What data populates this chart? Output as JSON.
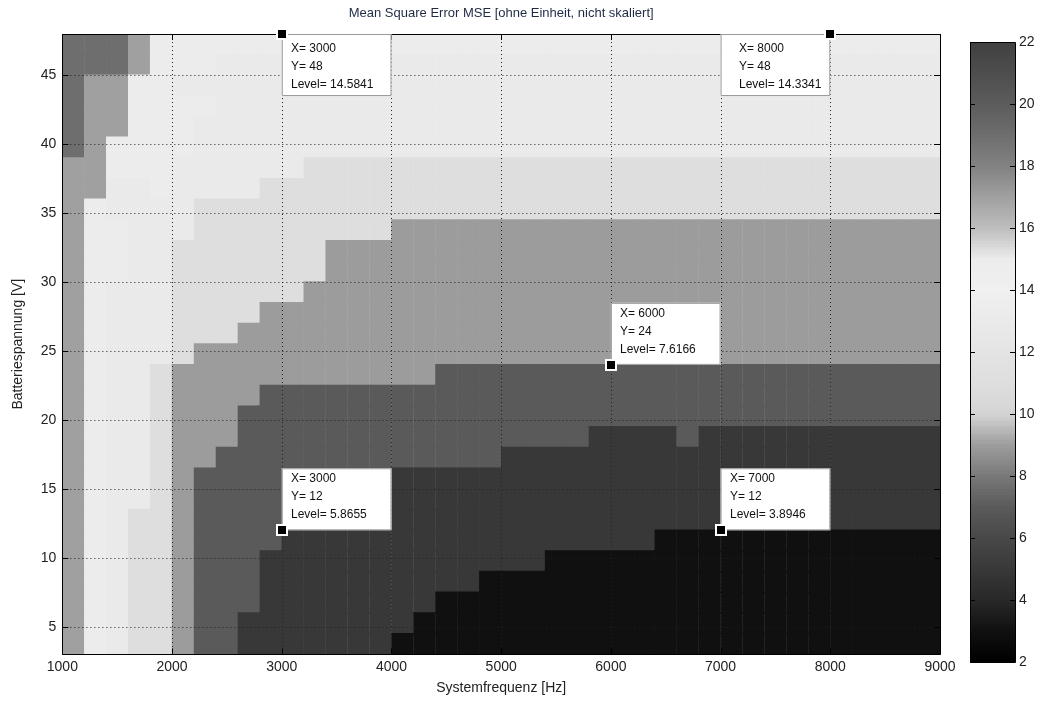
{
  "chart_data": {
    "type": "scatter",
    "title": "Mean Square Error MSE [ohne Einheit, nicht skaliert]",
    "xlabel": "Systemfrequenz [Hz]",
    "ylabel": "Batteriespannung [V]",
    "marker": "square",
    "x": [
      1100,
      1300,
      1500,
      1700,
      1900,
      2100,
      2300,
      2500,
      2700,
      2900,
      4100,
      4300,
      4500,
      4700,
      4900,
      5100,
      5300,
      5500,
      5700,
      5900,
      6100,
      6300,
      6500,
      6700,
      6900,
      8100,
      8300,
      8500,
      8700,
      8900,
      1100,
      1300,
      1500,
      1700,
      1900,
      2100,
      2300,
      2500,
      2700,
      2900,
      4100,
      4300,
      4500,
      4700,
      4900,
      5100,
      5300,
      5500,
      5700,
      5900,
      6100,
      6300,
      6500,
      6700,
      6900,
      8100,
      8300,
      8500,
      8700,
      8900,
      1100,
      1300,
      1500,
      1700,
      1900,
      2100,
      2300,
      2500,
      2700,
      2900,
      4100,
      4300,
      4500,
      4700,
      4900,
      5100,
      5300,
      5500,
      5700,
      5900,
      6100,
      6300,
      6500,
      6700,
      6900,
      8100,
      8300,
      8500,
      8700,
      8900,
      1100,
      1300,
      1500,
      1700,
      1900,
      2100,
      2300,
      2500,
      2700,
      2900,
      3100,
      3300,
      3500,
      3700,
      3900,
      4100,
      4300,
      4500,
      4700,
      4900,
      5100,
      5300,
      5500,
      5700,
      5900,
      6100,
      6300,
      6500,
      6700,
      6900,
      7100,
      7300,
      7500,
      7700,
      7900,
      8100,
      8300,
      8500,
      8700,
      8900,
      1100,
      1300,
      1500,
      1700,
      1900,
      2100,
      2300,
      2500,
      2700,
      2900,
      3100,
      3300,
      3500,
      3700,
      3900,
      4100,
      4300,
      4500,
      4700,
      4900,
      5100,
      5300,
      5500,
      5700,
      5900,
      6100,
      6300,
      6500,
      6700,
      6900,
      7100,
      7300,
      7500,
      7700,
      7900,
      8100,
      8300,
      8500,
      8700,
      8900,
      1100,
      1300,
      1500,
      1700,
      1900,
      2100,
      2300,
      2500,
      2700,
      2900,
      3100,
      3300,
      3500,
      3700,
      3900,
      4100,
      4300,
      4500,
      4700,
      4900,
      5100,
      5300,
      5500,
      5700,
      5900,
      6100,
      6300,
      6500,
      6700,
      6900,
      7100,
      7300,
      7500,
      7700,
      7900,
      8100,
      8300,
      8500,
      8700,
      8900,
      1100,
      1300,
      1500,
      1700,
      1900,
      2100,
      2300,
      2500,
      2700,
      2900,
      3100,
      3300,
      3500,
      3700,
      3900,
      4100,
      4300,
      4500,
      4700,
      4900,
      5100,
      5300,
      5500,
      5700,
      5900,
      6100,
      6300,
      6500,
      6700,
      6900,
      7100,
      7300,
      7500,
      7700,
      7900,
      8100,
      8300,
      8500,
      8700,
      8900,
      1100,
      1300,
      1500,
      1700,
      1900,
      2100,
      2300,
      2500,
      2700,
      2900,
      3100,
      3300,
      3500,
      3700,
      3900,
      4100,
      4300,
      4500,
      4700,
      4900,
      5100,
      5300,
      5500,
      5700,
      5900,
      6100,
      6300,
      6500,
      6700,
      6900,
      7100,
      7300,
      7500,
      7700,
      7900,
      8100,
      8300,
      8500,
      8700,
      8900,
      1100,
      1300,
      1500,
      1700,
      1900,
      2100,
      2300,
      2500,
      2700,
      2900,
      3100,
      3300,
      3500,
      3700,
      3900,
      4100,
      4300,
      4500,
      4700,
      4900,
      5100,
      5300,
      5500,
      5700,
      5900,
      6100,
      6300,
      6500,
      6700,
      6900,
      7100,
      7300,
      7500,
      7700,
      7900,
      8100,
      8300,
      8500,
      8700,
      8900,
      1100,
      1300,
      1500,
      1700,
      1900,
      2100,
      2300,
      2500,
      2700,
      2900,
      3100,
      3300,
      3500,
      3700,
      3900,
      4100,
      4300,
      4500,
      4700,
      4900,
      5100,
      5300,
      5500,
      5700,
      5900,
      6100,
      6300,
      6500,
      6700,
      6900,
      7100,
      7300,
      7500,
      7700,
      7900,
      8100,
      8300,
      8500,
      8700,
      8900,
      1100,
      1300,
      1500,
      1700,
      1900,
      2100,
      2300,
      2500,
      2700,
      2900,
      3100,
      3300,
      3500,
      3700,
      3900,
      4100,
      4300,
      4500,
      4700,
      4900,
      5100,
      5300,
      5500,
      5700,
      5900,
      6100,
      6300,
      6500,
      6700,
      6900,
      7100,
      7300,
      7500,
      7700,
      7900,
      8100,
      8300,
      8500,
      8700,
      8900,
      1100,
      1300,
      1500,
      1700,
      1900,
      2100,
      2300,
      2500,
      2700,
      2900,
      3100,
      3300,
      3500,
      3700,
      3900,
      4100,
      4300,
      4500,
      4700,
      4900,
      5100,
      5300,
      5500,
      5700,
      5900,
      6100,
      6300,
      6500,
      6700,
      6900,
      7100,
      7300,
      7500,
      7700,
      7900,
      8100,
      8300,
      8500,
      8700,
      8900,
      1100,
      1300,
      1500,
      1700,
      1900,
      2100,
      2300,
      2500,
      2700,
      2900,
      3100,
      3300,
      3500,
      3700,
      3900,
      4100,
      4300,
      4500,
      4700,
      4900,
      5100,
      5300,
      5500,
      5700,
      5900,
      6100,
      6300,
      6500,
      6700,
      6900,
      7100,
      7300,
      7500,
      7700,
      7900,
      8100,
      8300,
      8500,
      8700,
      8900,
      1100,
      1300,
      1500,
      1700,
      1900,
      2100,
      2300,
      2500,
      2700,
      2900,
      3100,
      3300,
      3500,
      3700,
      3900,
      4100,
      4300,
      4500,
      4700,
      4900,
      5100,
      5300,
      5500,
      5700,
      5900,
      7100,
      7300,
      7500,
      7700,
      7900,
      8100,
      8300,
      8500,
      8700,
      8900,
      1100,
      1300,
      1500,
      1700,
      1900,
      2100,
      2300,
      2500,
      2700,
      2900,
      3100,
      3300,
      3500,
      3700,
      3900,
      4100,
      4300,
      4500,
      4700,
      4900,
      5100,
      5300,
      5500,
      5700,
      5900,
      7100,
      7300,
      7500,
      7700,
      7900,
      8100,
      8300,
      8500,
      8700,
      8900,
      1100,
      1300,
      1500,
      1700,
      1900,
      2100,
      2300,
      2500,
      2700,
      2900,
      3100,
      3300,
      3500,
      3700,
      3900,
      4100,
      4300,
      4500,
      4700,
      4900,
      5100,
      5300,
      5500,
      5700,
      5900,
      7100,
      7300,
      7500,
      7700,
      7900,
      8100,
      8300,
      8500,
      8700,
      8900,
      1100,
      1300,
      1500,
      1700,
      1900,
      2100,
      2300,
      2500,
      2700,
      2900,
      3100,
      3300,
      3500,
      3700,
      3900,
      4100,
      4300,
      4500,
      4700,
      4900,
      5100,
      5300,
      5500,
      5700,
      5900,
      6100,
      6300,
      6500,
      6700,
      6900,
      7100,
      7300,
      7500,
      7700,
      7900,
      8100,
      8300,
      8500,
      8700,
      8900,
      1100,
      1300,
      1500,
      1700,
      1900,
      2100,
      2300,
      2500,
      2700,
      2900,
      3100,
      3300,
      3500,
      3700,
      3900,
      4100,
      4300,
      4500,
      4700,
      4900,
      5100,
      5300,
      5500,
      5700,
      5900,
      6100,
      6300,
      6500,
      6700,
      6900,
      7100,
      7300,
      7500,
      7700,
      7900,
      8100,
      8300,
      8500,
      8700,
      8900,
      1100,
      1300,
      1500,
      1700,
      1900,
      2100,
      2300,
      2500,
      2700,
      2900,
      3100,
      3300,
      3500,
      3700,
      3900,
      4100,
      4300,
      4500,
      4700,
      4900,
      5100,
      5300,
      5500,
      5700,
      5900,
      6100,
      6300,
      6500,
      6700,
      6900,
      7100,
      7300,
      7500,
      7700,
      7900,
      8100,
      8300,
      8500,
      8700,
      8900,
      1100,
      1300,
      1500,
      1700,
      1900,
      2100,
      2300,
      2500,
      2700,
      2900,
      3100,
      3300,
      3500,
      3700,
      3900,
      4100,
      4300,
      4500,
      4700,
      4900,
      5100,
      5300,
      5500,
      5700,
      5900,
      6100,
      6300,
      6500,
      6700,
      6900,
      7100,
      7300,
      7500,
      7700,
      7900,
      8100,
      8300,
      8500,
      8700,
      8900,
      1100,
      1300,
      1500,
      1700,
      1900,
      2100,
      2300,
      2500,
      2700,
      2900,
      3100,
      3300,
      3500,
      3700,
      3900,
      4100,
      4300,
      4500,
      4700,
      4900,
      5100,
      5300,
      5500,
      5700,
      5900,
      6100,
      6300,
      6500,
      6700,
      6900,
      7100,
      7300,
      7500,
      7700,
      7900,
      8100,
      8300,
      8500,
      8700,
      8900,
      1100,
      1300,
      1500,
      1700,
      1900,
      2100,
      2300,
      2500,
      2700,
      2900,
      4100,
      4300,
      4500,
      4700,
      4900,
      5100,
      5300,
      5500,
      5700,
      5900,
      6100,
      6300,
      6500,
      6700,
      6900,
      8100,
      8300,
      8500,
      8700,
      8900,
      1100,
      1300,
      1500,
      1700,
      1900,
      2100,
      2300,
      2500,
      2700,
      2900,
      4100,
      4300,
      4500,
      4700,
      4900,
      5100,
      5300,
      5500,
      5700,
      5900,
      6100,
      6300,
      6500,
      6700,
      6900,
      8100,
      8300,
      8500,
      8700,
      8900,
      1100,
      1300,
      1500,
      1700,
      1900,
      2100,
      2300,
      2500,
      2700,
      2900,
      4100,
      4300,
      4500,
      4700,
      4900,
      5100,
      5300,
      5500,
      5700,
      5900,
      6100,
      6300,
      6500,
      6700,
      6900,
      8100,
      8300,
      8500,
      8700,
      8900,
      1100,
      1300,
      1500,
      1700,
      1900,
      2100,
      2300,
      2500,
      2700,
      2900,
      3100,
      3300,
      3500,
      3700,
      3900,
      4100,
      4300,
      4500,
      4700,
      4900,
      5100,
      5300,
      5500,
      5700,
      5900,
      6100,
      6300,
      6500,
      6700,
      6900,
      7100,
      7300,
      7500,
      7700,
      7900,
      8100,
      8300,
      8500,
      8700,
      8900,
      1100,
      1300,
      1500,
      1700,
      1900,
      2100,
      2300,
      2500,
      2700,
      2900,
      3100,
      3300,
      3500,
      3700,
      3900,
      4100,
      4300,
      4500,
      4700,
      4900,
      5100,
      5300,
      5500,
      5700,
      5900,
      6100,
      6300,
      6500,
      6700,
      6900,
      7100,
      7300,
      7500,
      7700,
      7900,
      8100,
      8300,
      8500,
      8700,
      8900,
      1100,
      1300,
      1500,
      1700,
      1900,
      2100,
      2300,
      2500,
      2700,
      2900,
      3100,
      3300,
      3500,
      3700,
      3900,
      4100,
      4300,
      4500,
      4700,
      4900,
      5100,
      5300,
      5500,
      5700,
      5900,
      6100,
      6300,
      6500,
      6700,
      6900,
      7100,
      7300,
      7500,
      7700,
      7900,
      8100,
      8300,
      8500,
      8700,
      8900,
      1100,
      1300,
      1500,
      1700,
      1900,
      2100,
      2300,
      2500,
      2700,
      2900,
      3100,
      3300,
      3500,
      3700,
      3900,
      4100,
      4300,
      4500,
      4700,
      4900,
      5100,
      5300,
      5500,
      5700,
      5900,
      6100,
      6300,
      6500,
      6700,
      6900,
      7100,
      7300,
      7500,
      7700,
      7900,
      8100,
      8300,
      8500,
      8700,
      8900,
      1100,
      1300,
      1500,
      1700,
      1900,
      2100,
      2300,
      2500,
      2700,
      2900,
      3100,
      3300,
      3500,
      3700,
      3900,
      4100,
      4300,
      4500,
      4700,
      4900,
      5100,
      5300,
      5500,
      5700,
      5900,
      6100,
      6300,
      6500,
      6700,
      6900,
      7100,
      7300,
      7500,
      7700,
      7900,
      8100,
      8300,
      8500,
      8700,
      8900,
      1100,
      1300,
      1500,
      1700,
      1900,
      2100,
      2300,
      2500,
      2700,
      2900,
      3100,
      3300,
      3500,
      3700,
      3900,
      4100,
      4300,
      4500,
      4700,
      4900,
      5100,
      5300,
      5500,
      5700,
      5900,
      6100,
      6300,
      6500,
      6700,
      6900,
      7100,
      7300,
      7500,
      7700,
      7900,
      8100,
      8300,
      8500,
      8700,
      8900
    ],
    "values": [
      47.25,
      47.25,
      47.25,
      47.25,
      47.25,
      47.25,
      47.25,
      47.25,
      47.25,
      47.25,
      47.25,
      47.25,
      47.25,
      47.25,
      47.25,
      47.25,
      47.25,
      47.25,
      47.25,
      47.25,
      47.25,
      47.25,
      47.25,
      47.25,
      47.25,
      47.25,
      47.25,
      47.25,
      47.25,
      47.25,
      45.75,
      45.75,
      45.75,
      45.75,
      45.75,
      45.75,
      45.75,
      45.75,
      45.75,
      45.75,
      45.75,
      45.75,
      45.75,
      45.75,
      45.75,
      45.75,
      45.75,
      45.75,
      45.75,
      45.75,
      45.75,
      45.75,
      45.75,
      45.75,
      45.75,
      45.75,
      45.75,
      45.75,
      45.75,
      45.75,
      44.25,
      44.25,
      44.25,
      44.25,
      44.25,
      44.25,
      44.25,
      44.25,
      44.25,
      44.25,
      44.25,
      44.25,
      44.25,
      44.25,
      44.25,
      44.25,
      44.25,
      44.25,
      44.25,
      44.25,
      44.25,
      44.25,
      44.25,
      44.25,
      44.25,
      44.25,
      44.25,
      44.25,
      44.25,
      44.25,
      42.75,
      42.75,
      42.75,
      42.75,
      42.75,
      42.75,
      42.75,
      42.75,
      42.75,
      42.75,
      42.75,
      42.75,
      42.75,
      42.75,
      42.75,
      42.75,
      42.75,
      42.75,
      42.75,
      42.75,
      42.75,
      42.75,
      42.75,
      42.75,
      42.75,
      42.75,
      42.75,
      42.75,
      42.75,
      42.75,
      42.75,
      42.75,
      42.75,
      42.75,
      42.75,
      42.75,
      42.75,
      42.75,
      42.75,
      42.75,
      41.25,
      41.25,
      41.25,
      41.25,
      41.25,
      41.25,
      41.25,
      41.25,
      41.25,
      41.25,
      41.25,
      41.25,
      41.25,
      41.25,
      41.25,
      41.25,
      41.25,
      41.25,
      41.25,
      41.25,
      41.25,
      41.25,
      41.25,
      41.25,
      41.25,
      41.25,
      41.25,
      41.25,
      41.25,
      41.25,
      41.25,
      41.25,
      41.25,
      41.25,
      41.25,
      41.25,
      41.25,
      41.25,
      41.25,
      41.25,
      39.75,
      39.75,
      39.75,
      39.75,
      39.75,
      39.75,
      39.75,
      39.75,
      39.75,
      39.75,
      39.75,
      39.75,
      39.75,
      39.75,
      39.75,
      39.75,
      39.75,
      39.75,
      39.75,
      39.75,
      39.75,
      39.75,
      39.75,
      39.75,
      39.75,
      39.75,
      39.75,
      39.75,
      39.75,
      39.75,
      39.75,
      39.75,
      39.75,
      39.75,
      39.75,
      39.75,
      39.75,
      39.75,
      39.75,
      39.75,
      38.25,
      38.25,
      38.25,
      38.25,
      38.25,
      38.25,
      38.25,
      38.25,
      38.25,
      38.25,
      38.25,
      38.25,
      38.25,
      38.25,
      38.25,
      38.25,
      38.25,
      38.25,
      38.25,
      38.25,
      38.25,
      38.25,
      38.25,
      38.25,
      38.25,
      38.25,
      38.25,
      38.25,
      38.25,
      38.25,
      38.25,
      38.25,
      38.25,
      38.25,
      38.25,
      38.25,
      38.25,
      38.25,
      38.25,
      38.25,
      36.75,
      36.75,
      36.75,
      36.75,
      36.75,
      36.75,
      36.75,
      36.75,
      36.75,
      36.75,
      36.75,
      36.75,
      36.75,
      36.75,
      36.75,
      36.75,
      36.75,
      36.75,
      36.75,
      36.75,
      36.75,
      36.75,
      36.75,
      36.75,
      36.75,
      36.75,
      36.75,
      36.75,
      36.75,
      36.75,
      36.75,
      36.75,
      36.75,
      36.75,
      36.75,
      36.75,
      36.75,
      36.75,
      36.75,
      36.75,
      35.25,
      35.25,
      35.25,
      35.25,
      35.25,
      35.25,
      35.25,
      35.25,
      35.25,
      35.25,
      35.25,
      35.25,
      35.25,
      35.25,
      35.25,
      35.25,
      35.25,
      35.25,
      35.25,
      35.25,
      35.25,
      35.25,
      35.25,
      35.25,
      35.25,
      35.25,
      35.25,
      35.25,
      35.25,
      35.25,
      35.25,
      35.25,
      35.25,
      35.25,
      35.25,
      35.25,
      35.25,
      35.25,
      35.25,
      35.25,
      33.75,
      33.75,
      33.75,
      33.75,
      33.75,
      33.75,
      33.75,
      33.75,
      33.75,
      33.75,
      33.75,
      33.75,
      33.75,
      33.75,
      33.75,
      33.75,
      33.75,
      33.75,
      33.75,
      33.75,
      33.75,
      33.75,
      33.75,
      33.75,
      33.75,
      33.75,
      33.75,
      33.75,
      33.75,
      33.75,
      33.75,
      33.75,
      33.75,
      33.75,
      33.75,
      33.75,
      33.75,
      33.75,
      33.75,
      33.75,
      32.25,
      32.25,
      32.25,
      32.25,
      32.25,
      32.25,
      32.25,
      32.25,
      32.25,
      32.25,
      32.25,
      32.25,
      32.25,
      32.25,
      32.25,
      32.25,
      32.25,
      32.25,
      32.25,
      32.25,
      32.25,
      32.25,
      32.25,
      32.25,
      32.25,
      32.25,
      32.25,
      32.25,
      32.25,
      32.25,
      32.25,
      32.25,
      32.25,
      32.25,
      32.25,
      32.25,
      32.25,
      32.25,
      32.25,
      32.25,
      30.75,
      30.75,
      30.75,
      30.75,
      30.75,
      30.75,
      30.75,
      30.75,
      30.75,
      30.75,
      30.75,
      30.75,
      30.75,
      30.75,
      30.75,
      30.75,
      30.75,
      30.75,
      30.75,
      30.75,
      30.75,
      30.75,
      30.75,
      30.75,
      30.75,
      30.75,
      30.75,
      30.75,
      30.75,
      30.75,
      30.75,
      30.75,
      30.75,
      30.75,
      30.75,
      30.75,
      30.75,
      30.75,
      30.75,
      30.75,
      29.25,
      29.25,
      29.25,
      29.25,
      29.25,
      29.25,
      29.25,
      29.25,
      29.25,
      29.25,
      29.25,
      29.25,
      29.25,
      29.25,
      29.25,
      29.25,
      29.25,
      29.25,
      29.25,
      29.25,
      29.25,
      29.25,
      29.25,
      29.25,
      29.25,
      29.25,
      29.25,
      29.25,
      29.25,
      29.25,
      29.25,
      29.25,
      29.25,
      29.25,
      29.25,
      29.25,
      29.25,
      29.25,
      29.25,
      29.25,
      27.75,
      27.75,
      27.75,
      27.75,
      27.75,
      27.75,
      27.75,
      27.75,
      27.75,
      27.75,
      27.75,
      27.75,
      27.75,
      27.75,
      27.75,
      27.75,
      27.75,
      27.75,
      27.75,
      27.75,
      27.75,
      27.75,
      27.75,
      27.75,
      27.75,
      27.75,
      27.75,
      27.75,
      27.75,
      27.75,
      27.75,
      27.75,
      27.75,
      27.75,
      27.75,
      26.25,
      26.25,
      26.25,
      26.25,
      26.25,
      26.25,
      26.25,
      26.25,
      26.25,
      26.25,
      26.25,
      26.25,
      26.25,
      26.25,
      26.25,
      26.25,
      26.25,
      26.25,
      26.25,
      26.25,
      26.25,
      26.25,
      26.25,
      26.25,
      26.25,
      26.25,
      26.25,
      26.25,
      26.25,
      26.25,
      26.25,
      26.25,
      26.25,
      26.25,
      26.25,
      24.75,
      24.75,
      24.75,
      24.75,
      24.75,
      24.75,
      24.75,
      24.75,
      24.75,
      24.75,
      24.75,
      24.75,
      24.75,
      24.75,
      24.75,
      24.75,
      24.75,
      24.75,
      24.75,
      24.75,
      24.75,
      24.75,
      24.75,
      24.75,
      24.75,
      24.75,
      24.75,
      24.75,
      24.75,
      24.75,
      24.75,
      24.75,
      24.75,
      24.75,
      24.75,
      23.25,
      23.25,
      23.25,
      23.25,
      23.25,
      23.25,
      23.25,
      23.25,
      23.25,
      23.25,
      23.25,
      23.25,
      23.25,
      23.25,
      23.25,
      23.25,
      23.25,
      23.25,
      23.25,
      23.25,
      23.25,
      23.25,
      23.25,
      23.25,
      23.25,
      23.25,
      23.25,
      23.25,
      23.25,
      23.25,
      23.25,
      23.25,
      23.25,
      23.25,
      23.25,
      23.25,
      23.25,
      23.25,
      23.25,
      23.25,
      21.75,
      21.75,
      21.75,
      21.75,
      21.75,
      21.75,
      21.75,
      21.75,
      21.75,
      21.75,
      21.75,
      21.75,
      21.75,
      21.75,
      21.75,
      21.75,
      21.75,
      21.75,
      21.75,
      21.75,
      21.75,
      21.75,
      21.75,
      21.75,
      21.75,
      21.75,
      21.75,
      21.75,
      21.75,
      21.75,
      21.75,
      21.75,
      21.75,
      21.75,
      21.75,
      21.75,
      21.75,
      21.75,
      21.75,
      21.75,
      20.25,
      20.25,
      20.25,
      20.25,
      20.25,
      20.25,
      20.25,
      20.25,
      20.25,
      20.25,
      20.25,
      20.25,
      20.25,
      20.25,
      20.25,
      20.25,
      20.25,
      20.25,
      20.25,
      20.25,
      20.25,
      20.25,
      20.25,
      20.25,
      20.25,
      20.25,
      20.25,
      20.25,
      20.25,
      20.25,
      20.25,
      20.25,
      20.25,
      20.25,
      20.25,
      20.25,
      20.25,
      20.25,
      20.25,
      20.25,
      18.75,
      18.75,
      18.75,
      18.75,
      18.75,
      18.75,
      18.75,
      18.75,
      18.75,
      18.75,
      18.75,
      18.75,
      18.75,
      18.75,
      18.75,
      18.75,
      18.75,
      18.75,
      18.75,
      18.75,
      18.75,
      18.75,
      18.75,
      18.75,
      18.75,
      18.75,
      18.75,
      18.75,
      18.75,
      18.75,
      18.75,
      18.75,
      18.75,
      18.75,
      18.75,
      18.75,
      18.75,
      18.75,
      18.75,
      18.75,
      17.25,
      17.25,
      17.25,
      17.25,
      17.25,
      17.25,
      17.25,
      17.25,
      17.25,
      17.25,
      17.25,
      17.25,
      17.25,
      17.25,
      17.25,
      17.25,
      17.25,
      17.25,
      17.25,
      17.25,
      17.25,
      17.25,
      17.25,
      17.25,
      17.25,
      17.25,
      17.25,
      17.25,
      17.25,
      17.25,
      17.25,
      17.25,
      17.25,
      17.25,
      17.25,
      17.25,
      17.25,
      17.25,
      17.25,
      17.25,
      15.75,
      15.75,
      15.75,
      15.75,
      15.75,
      15.75,
      15.75,
      15.75,
      15.75,
      15.75,
      15.75,
      15.75,
      15.75,
      15.75,
      15.75,
      15.75,
      15.75,
      15.75,
      15.75,
      15.75,
      15.75,
      15.75,
      15.75,
      15.75,
      15.75,
      15.75,
      15.75,
      15.75,
      15.75,
      15.75,
      14.25,
      14.25,
      14.25,
      14.25,
      14.25,
      14.25,
      14.25,
      14.25,
      14.25,
      14.25,
      14.25,
      14.25,
      14.25,
      14.25,
      14.25,
      14.25,
      14.25,
      14.25,
      14.25,
      14.25,
      14.25,
      14.25,
      14.25,
      14.25,
      14.25,
      14.25,
      14.25,
      14.25,
      14.25,
      14.25,
      12.75,
      12.75,
      12.75,
      12.75,
      12.75,
      12.75,
      12.75,
      12.75,
      12.75,
      12.75,
      12.75,
      12.75,
      12.75,
      12.75,
      12.75,
      12.75,
      12.75,
      12.75,
      12.75,
      12.75,
      12.75,
      12.75,
      12.75,
      12.75,
      12.75,
      12.75,
      12.75,
      12.75,
      12.75,
      12.75,
      11.25,
      11.25,
      11.25,
      11.25,
      11.25,
      11.25,
      11.25,
      11.25,
      11.25,
      11.25,
      11.25,
      11.25,
      11.25,
      11.25,
      11.25,
      11.25,
      11.25,
      11.25,
      11.25,
      11.25,
      11.25,
      11.25,
      11.25,
      11.25,
      11.25,
      11.25,
      11.25,
      11.25,
      11.25,
      11.25,
      11.25,
      11.25,
      11.25,
      11.25,
      11.25,
      11.25,
      11.25,
      11.25,
      11.25,
      11.25,
      9.75,
      9.75,
      9.75,
      9.75,
      9.75,
      9.75,
      9.75,
      9.75,
      9.75,
      9.75,
      9.75,
      9.75,
      9.75,
      9.75,
      9.75,
      9.75,
      9.75,
      9.75,
      9.75,
      9.75,
      9.75,
      9.75,
      9.75,
      9.75,
      9.75,
      9.75,
      9.75,
      9.75,
      9.75,
      9.75,
      9.75,
      9.75,
      9.75,
      9.75,
      9.75,
      9.75,
      9.75,
      9.75,
      9.75,
      9.75,
      8.25,
      8.25,
      8.25,
      8.25,
      8.25,
      8.25,
      8.25,
      8.25,
      8.25,
      8.25,
      8.25,
      8.25,
      8.25,
      8.25,
      8.25,
      8.25,
      8.25,
      8.25,
      8.25,
      8.25,
      8.25,
      8.25,
      8.25,
      8.25,
      8.25,
      8.25,
      8.25,
      8.25,
      8.25,
      8.25,
      8.25,
      8.25,
      8.25,
      8.25,
      8.25,
      8.25,
      8.25,
      8.25,
      8.25,
      8.25,
      6.75,
      6.75,
      6.75,
      6.75,
      6.75,
      6.75,
      6.75,
      6.75,
      6.75,
      6.75,
      6.75,
      6.75,
      6.75,
      6.75,
      6.75,
      6.75,
      6.75,
      6.75,
      6.75,
      6.75,
      6.75,
      6.75,
      6.75,
      6.75,
      6.75,
      6.75,
      6.75,
      6.75,
      6.75,
      6.75,
      6.75,
      6.75,
      6.75,
      6.75,
      6.75,
      6.75,
      6.75,
      6.75,
      6.75,
      6.75,
      5.25,
      5.25,
      5.25,
      5.25,
      5.25,
      5.25,
      5.25,
      5.25,
      5.25,
      5.25,
      5.25,
      5.25,
      5.25,
      5.25,
      5.25,
      5.25,
      5.25,
      5.25,
      5.25,
      5.25,
      5.25,
      5.25,
      5.25,
      5.25,
      5.25,
      5.25,
      5.25,
      5.25,
      5.25,
      5.25,
      5.25,
      5.25,
      5.25,
      5.25,
      5.25,
      5.25,
      5.25,
      5.25,
      5.25,
      5.25,
      3.75,
      3.75,
      3.75,
      3.75,
      3.75,
      3.75,
      3.75,
      3.75,
      3.75,
      3.75,
      3.75,
      3.75,
      3.75,
      3.75,
      3.75,
      3.75,
      3.75,
      3.75,
      3.75,
      3.75,
      3.75,
      3.75,
      3.75,
      3.75,
      3.75,
      3.75,
      3.75,
      3.75,
      3.75,
      3.75,
      3.75,
      3.75,
      3.75,
      3.75,
      3.75,
      3.75,
      3.75,
      3.75,
      3.75,
      3.75
    ],
    "cvalues": [
      19,
      19,
      19,
      17,
      15,
      15,
      15,
      15,
      15,
      15,
      15,
      15,
      15,
      15,
      15,
      15,
      15,
      15,
      15,
      15,
      15,
      15,
      15,
      15,
      15,
      15,
      15,
      15,
      15,
      15,
      19,
      19,
      19,
      17,
      15,
      15,
      15,
      13,
      13,
      13,
      13,
      13,
      13,
      13,
      13,
      13,
      13,
      13,
      13,
      13,
      13,
      13,
      13,
      13,
      13,
      13,
      13,
      13,
      13,
      13,
      19,
      17,
      17,
      15,
      15,
      13,
      13,
      13,
      13,
      13,
      13,
      13,
      13,
      13,
      13,
      13,
      13,
      13,
      13,
      13,
      13,
      13,
      13,
      13,
      13,
      13,
      13,
      13,
      13,
      13,
      19,
      17,
      17,
      15,
      15,
      15,
      15,
      13,
      13,
      13,
      13,
      13,
      13,
      13,
      13,
      13,
      13,
      13,
      13,
      13,
      13,
      13,
      13,
      13,
      13,
      13,
      13,
      13,
      13,
      13,
      13,
      13,
      13,
      13,
      13,
      13,
      13,
      13,
      13,
      13,
      19,
      17,
      17,
      15,
      15,
      15,
      13,
      13,
      13,
      13,
      13,
      13,
      13,
      13,
      13,
      13,
      13,
      13,
      13,
      13,
      13,
      13,
      13,
      13,
      13,
      13,
      13,
      13,
      13,
      13,
      13,
      13,
      13,
      13,
      13,
      13,
      13,
      13,
      13,
      13,
      19,
      17,
      15,
      15,
      15,
      15,
      13,
      13,
      13,
      13,
      13,
      13,
      13,
      13,
      13,
      13,
      13,
      13,
      13,
      13,
      13,
      13,
      13,
      13,
      13,
      13,
      13,
      13,
      13,
      13,
      13,
      13,
      13,
      13,
      13,
      13,
      13,
      13,
      13,
      13,
      17,
      17,
      15,
      15,
      15,
      13,
      13,
      13,
      13,
      13,
      13,
      11,
      11,
      11,
      11,
      11,
      11,
      11,
      11,
      11,
      11,
      11,
      11,
      11,
      11,
      11,
      11,
      11,
      11,
      11,
      11,
      11,
      11,
      11,
      11,
      11,
      11,
      11,
      11,
      11,
      17,
      17,
      13,
      13,
      15,
      13,
      13,
      13,
      13,
      11,
      11,
      11,
      11,
      11,
      11,
      11,
      11,
      11,
      11,
      11,
      11,
      11,
      11,
      11,
      11,
      11,
      11,
      11,
      11,
      11,
      11,
      11,
      11,
      11,
      11,
      11,
      11,
      11,
      11,
      11,
      17,
      15,
      13,
      13,
      13,
      13,
      11,
      11,
      11,
      11,
      11,
      11,
      11,
      11,
      11,
      11,
      11,
      11,
      11,
      11,
      11,
      11,
      11,
      11,
      11,
      11,
      11,
      11,
      11,
      11,
      11,
      11,
      11,
      11,
      11,
      11,
      11,
      11,
      11,
      11,
      17,
      15,
      15,
      13,
      13,
      13,
      11,
      11,
      11,
      11,
      11,
      11,
      11,
      11,
      11,
      9,
      9,
      9,
      9,
      9,
      9,
      9,
      9,
      9,
      9,
      9,
      9,
      9,
      9,
      9,
      9,
      9,
      9,
      9,
      9,
      9,
      9,
      9,
      9,
      9,
      17,
      15,
      15,
      13,
      13,
      11,
      11,
      11,
      11,
      11,
      11,
      11,
      9,
      9,
      9,
      9,
      9,
      9,
      9,
      9,
      9,
      9,
      9,
      9,
      9,
      9,
      9,
      9,
      9,
      9,
      9,
      9,
      9,
      9,
      9,
      9,
      9,
      9,
      9,
      9,
      17,
      15,
      15,
      13,
      13,
      11,
      11,
      11,
      11,
      11,
      11,
      11,
      9,
      9,
      9,
      9,
      9,
      9,
      9,
      9,
      9,
      9,
      9,
      9,
      9,
      9,
      9,
      9,
      9,
      9,
      9,
      9,
      9,
      9,
      9,
      9,
      9,
      9,
      9,
      9,
      17,
      15,
      13,
      13,
      13,
      11,
      11,
      11,
      11,
      11,
      11,
      9,
      9,
      9,
      9,
      9,
      9,
      9,
      9,
      9,
      9,
      9,
      9,
      9,
      9,
      9,
      9,
      9,
      9,
      9,
      9,
      9,
      9,
      9,
      9,
      9,
      9,
      9,
      9,
      9,
      17,
      15,
      13,
      13,
      13,
      11,
      11,
      11,
      11,
      9,
      9,
      9,
      9,
      9,
      9,
      9,
      9,
      9,
      9,
      9,
      9,
      9,
      9,
      9,
      9,
      9,
      9,
      9,
      9,
      9,
      9,
      9,
      9,
      9,
      9,
      17,
      15,
      13,
      13,
      13,
      11,
      11,
      11,
      9,
      9,
      9,
      9,
      9,
      9,
      9,
      9,
      9,
      9,
      9,
      9,
      9,
      9,
      9,
      9,
      9,
      9,
      9,
      9,
      9,
      9,
      9,
      9,
      9,
      9,
      9,
      17,
      15,
      13,
      13,
      13,
      11,
      9,
      9,
      9,
      9,
      9,
      9,
      9,
      9,
      9,
      9,
      9,
      9,
      9,
      9,
      9,
      9,
      9,
      9,
      9,
      9,
      9,
      9,
      9,
      9,
      9,
      9,
      9,
      9,
      9,
      17,
      15,
      13,
      13,
      11,
      9,
      9,
      9,
      9,
      9,
      9,
      9,
      9,
      9,
      9,
      9,
      9,
      7,
      7,
      7,
      7,
      7,
      7,
      7,
      7,
      7,
      7,
      7,
      7,
      7,
      7,
      7,
      7,
      7,
      7,
      7,
      7,
      7,
      7,
      7,
      17,
      15,
      13,
      13,
      11,
      9,
      9,
      9,
      9,
      7,
      7,
      7,
      7,
      7,
      7,
      7,
      7,
      7,
      7,
      7,
      7,
      7,
      7,
      7,
      7,
      7,
      7,
      7,
      7,
      7,
      7,
      7,
      7,
      7,
      7,
      7,
      7,
      7,
      7,
      7,
      17,
      15,
      13,
      13,
      11,
      9,
      9,
      9,
      7,
      7,
      7,
      7,
      7,
      7,
      7,
      7,
      7,
      7,
      7,
      7,
      7,
      7,
      7,
      7,
      7,
      7,
      7,
      7,
      7,
      7,
      7,
      7,
      7,
      7,
      7,
      7,
      7,
      7,
      7,
      7,
      17,
      15,
      13,
      13,
      11,
      9,
      9,
      9,
      7,
      7,
      7,
      7,
      7,
      7,
      7,
      7,
      7,
      7,
      7,
      7,
      7,
      7,
      7,
      7,
      5,
      5,
      5,
      5,
      7,
      5,
      5,
      5,
      5,
      5,
      5,
      5,
      5,
      5,
      5,
      5,
      17,
      15,
      13,
      13,
      11,
      9,
      9,
      7,
      7,
      7,
      7,
      7,
      7,
      7,
      7,
      7,
      7,
      7,
      7,
      7,
      5,
      5,
      5,
      5,
      5,
      5,
      5,
      5,
      5,
      5,
      5,
      5,
      5,
      5,
      5,
      5,
      5,
      5,
      5,
      5,
      17,
      15,
      13,
      13,
      11,
      9,
      7,
      7,
      7,
      7,
      5,
      5,
      5,
      5,
      5,
      5,
      5,
      5,
      5,
      5,
      5,
      5,
      5,
      5,
      5,
      5,
      5,
      5,
      5,
      5,
      17,
      15,
      13,
      13,
      11,
      9,
      7,
      7,
      7,
      7,
      5,
      5,
      5,
      5,
      5,
      5,
      5,
      5,
      5,
      5,
      5,
      5,
      5,
      5,
      5,
      5,
      5,
      5,
      5,
      5,
      17,
      15,
      13,
      11,
      11,
      9,
      7,
      7,
      7,
      7,
      5,
      5,
      5,
      5,
      5,
      5,
      5,
      5,
      5,
      5,
      5,
      5,
      5,
      5,
      5,
      5,
      5,
      5,
      5,
      5,
      17,
      15,
      13,
      11,
      11,
      9,
      7,
      7,
      7,
      7,
      5,
      5,
      5,
      5,
      5,
      5,
      5,
      5,
      5,
      5,
      5,
      5,
      5,
      5,
      5,
      5,
      5,
      3,
      3,
      3,
      3,
      3,
      3,
      3,
      3,
      3,
      3,
      3,
      3,
      3,
      17,
      15,
      13,
      11,
      11,
      9,
      7,
      7,
      7,
      5,
      5,
      5,
      5,
      5,
      5,
      5,
      5,
      5,
      5,
      5,
      5,
      5,
      3,
      3,
      3,
      3,
      3,
      3,
      3,
      3,
      3,
      3,
      3,
      3,
      3,
      3,
      3,
      3,
      3,
      3,
      17,
      15,
      13,
      11,
      11,
      9,
      7,
      7,
      7,
      5,
      5,
      5,
      5,
      5,
      5,
      5,
      5,
      5,
      5,
      3,
      3,
      3,
      3,
      3,
      3,
      3,
      3,
      3,
      3,
      3,
      3,
      3,
      3,
      3,
      3,
      3,
      3,
      3,
      3,
      3,
      17,
      15,
      13,
      11,
      11,
      9,
      7,
      7,
      7,
      5,
      5,
      5,
      5,
      5,
      5,
      5,
      5,
      3,
      3,
      3,
      3,
      3,
      3,
      3,
      3,
      3,
      3,
      3,
      3,
      3,
      3,
      3,
      3,
      3,
      3,
      3,
      3,
      3,
      3,
      3,
      17,
      15,
      13,
      11,
      11,
      9,
      7,
      7,
      5,
      5,
      5,
      5,
      5,
      5,
      5,
      5,
      3,
      3,
      3,
      3,
      3,
      3,
      3,
      3,
      3,
      3,
      3,
      3,
      3,
      3,
      3,
      3,
      3,
      3,
      3,
      3,
      3,
      3,
      3,
      3,
      17,
      15,
      13,
      11,
      11,
      9,
      7,
      7,
      5,
      5,
      5,
      5,
      5,
      5,
      5,
      3,
      3,
      3,
      3,
      3,
      3,
      3,
      3,
      3,
      3,
      3,
      3,
      3,
      3,
      3,
      3,
      3,
      3,
      3,
      3,
      3,
      3,
      3,
      3,
      3
    ],
    "xlim": [
      1000,
      9000
    ],
    "xticks": [
      1000,
      2000,
      3000,
      4000,
      5000,
      6000,
      7000,
      8000,
      9000
    ],
    "ylim": [
      3,
      48
    ],
    "yticks": [
      5,
      10,
      15,
      20,
      25,
      30,
      35,
      40,
      45
    ],
    "clim": [
      2,
      22
    ],
    "cticks": [
      2,
      4,
      6,
      8,
      10,
      12,
      14,
      16,
      18,
      20,
      22
    ],
    "grid": true,
    "annotations": [
      {
        "text": "X= 3000\nY= 48\nLevel= 14.5841",
        "x": 3000,
        "y": 48
      },
      {
        "text": "X= 8000\nY= 48\nLevel= 14.3341",
        "x": 8000,
        "y": 48
      },
      {
        "text": "X= 6000\nY= 24\nLevel= 7.6166",
        "x": 6000,
        "y": 24
      },
      {
        "text": "X= 3000\nY= 12\nLevel= 5.8655",
        "x": 3000,
        "y": 12
      },
      {
        "text": "X= 7000\nY= 12\nLevel= 3.8946",
        "x": 7000,
        "y": 12
      }
    ]
  }
}
